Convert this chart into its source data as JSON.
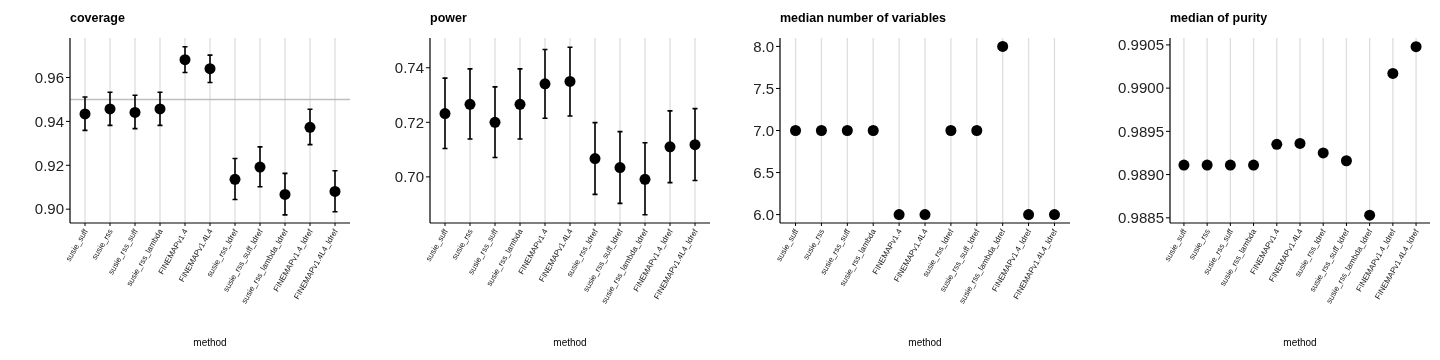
{
  "chart_data": [
    {
      "type": "scatter",
      "title": "coverage",
      "xlabel": "method",
      "categories": [
        "susie_suff",
        "susie_rss",
        "susie_rss_suff",
        "susie_rss_lambda",
        "FINEMAPv1.4",
        "FINEMAPv1.4L4",
        "susie_rss_ldref",
        "susie_rss_suff_ldref",
        "susie_rss_lambda_ldref",
        "FINEMAPv1.4_ldref",
        "FINEMAPv1.4L4_ldref"
      ],
      "series": [
        {
          "color": "#000000",
          "values": [
            0.9434,
            0.9457,
            0.9441,
            0.9457,
            0.9681,
            0.964,
            0.9136,
            0.9192,
            0.9067,
            0.9373,
            0.9081
          ],
          "errors": [
            [
              0.9359,
              0.9511
            ],
            [
              0.9382,
              0.9533
            ],
            [
              0.9367,
              0.9519
            ],
            [
              0.9382,
              0.9533
            ],
            [
              0.9623,
              0.974
            ],
            [
              0.9577,
              0.9702
            ],
            [
              0.9044,
              0.9231
            ],
            [
              0.9102,
              0.9284
            ],
            [
              0.8974,
              0.9163
            ],
            [
              0.9294,
              0.9455
            ],
            [
              0.8988,
              0.9175
            ]
          ]
        }
      ],
      "ylim": [
        0.8937,
        0.978
      ],
      "yticks": [
        {
          "value": 0.9,
          "label": "0.90"
        },
        0.92,
        0.94,
        0.96
      ],
      "grid": "x",
      "marker": "circle",
      "ref_lines": [
        {
          "axis": "y",
          "value": 0.95,
          "color": "#bebebe"
        }
      ]
    },
    {
      "type": "scatter",
      "title": "power",
      "xlabel": "method",
      "categories": [
        "susie_suff",
        "susie_rss",
        "susie_rss_suff",
        "susie_rss_lambda",
        "FINEMAPv1.4",
        "FINEMAPv1.4L4",
        "susie_rss_ldref",
        "susie_rss_suff_ldref",
        "susie_rss_lambda_ldref",
        "FINEMAPv1.4_ldref",
        "FINEMAPv1.4L4_ldref"
      ],
      "series": [
        {
          "color": "#000000",
          "values": [
            0.7232,
            0.7266,
            0.72,
            0.7266,
            0.7341,
            0.735,
            0.7067,
            0.7034,
            0.6991,
            0.711,
            0.7118
          ],
          "errors": [
            [
              0.7104,
              0.7362
            ],
            [
              0.7139,
              0.7396
            ],
            [
              0.7071,
              0.733
            ],
            [
              0.7139,
              0.7396
            ],
            [
              0.7215,
              0.7467
            ],
            [
              0.7223,
              0.7475
            ],
            [
              0.6936,
              0.7199
            ],
            [
              0.6903,
              0.7166
            ],
            [
              0.6861,
              0.7125
            ],
            [
              0.6979,
              0.7242
            ],
            [
              0.6987,
              0.725
            ]
          ]
        }
      ],
      "ylim": [
        0.6831,
        0.7509
      ],
      "yticks": [
        {
          "value": 0.7,
          "label": "0.70"
        },
        0.72,
        0.74
      ],
      "grid": "x",
      "marker": "circle"
    },
    {
      "type": "scatter",
      "title": "median number of variables",
      "xlabel": "method",
      "categories": [
        "susie_suff",
        "susie_rss",
        "susie_rss_suff",
        "susie_rss_lambda",
        "FINEMAPv1.4",
        "FINEMAPv1.4L4",
        "susie_rss_ldref",
        "susie_rss_suff_ldref",
        "susie_rss_lambda_ldref",
        "FINEMAPv1.4_ldref",
        "FINEMAPv1.4L4_ldref"
      ],
      "series": [
        {
          "color": "#000000",
          "values": [
            7,
            7,
            7,
            7,
            6,
            6,
            7,
            7,
            8,
            6,
            6
          ]
        }
      ],
      "ylim": [
        5.9,
        8.1
      ],
      "yticks": [
        {
          "value": 6,
          "label": "6.0"
        },
        6.5,
        {
          "value": 7,
          "label": "7.0"
        },
        7.5,
        {
          "value": 8,
          "label": "8.0"
        }
      ],
      "grid": "x",
      "marker": "circle"
    },
    {
      "type": "scatter",
      "title": "median of purity",
      "xlabel": "method",
      "categories": [
        "susie_suff",
        "susie_rss",
        "susie_rss_suff",
        "susie_rss_lambda",
        "FINEMAPv1.4",
        "FINEMAPv1.4L4",
        "susie_rss_ldref",
        "susie_rss_suff_ldref",
        "susie_rss_lambda_ldref",
        "FINEMAPv1.4_ldref",
        "FINEMAPv1.4L4_ldref"
      ],
      "series": [
        {
          "color": "#000000",
          "values": [
            0.98911,
            0.98911,
            0.98911,
            0.98911,
            0.98935,
            0.98936,
            0.98925,
            0.98916,
            0.98853,
            0.99017,
            0.99048
          ]
        }
      ],
      "ylim": [
        0.98844,
        0.99058
      ],
      "yticks": [
        0.9885,
        {
          "value": 0.989,
          "label": "0.9890"
        },
        0.9895,
        {
          "value": 0.99,
          "label": "0.9900"
        },
        0.9905
      ],
      "grid": "x",
      "marker": "circle"
    }
  ]
}
